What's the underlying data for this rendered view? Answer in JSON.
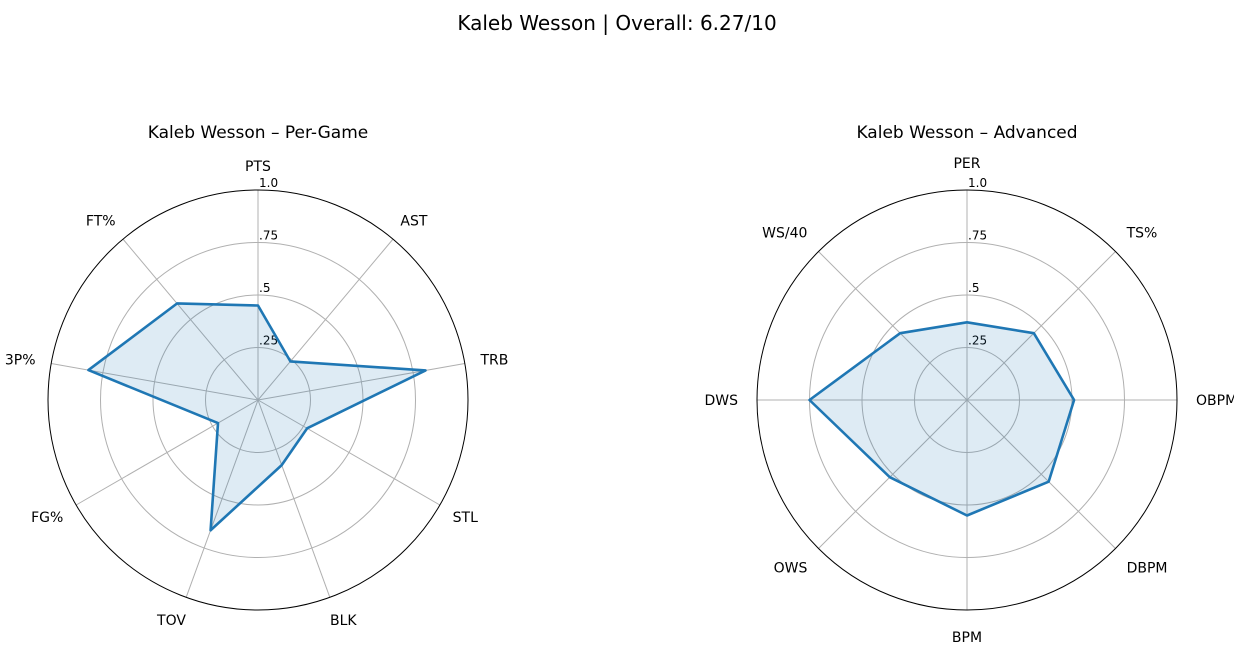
{
  "figure": {
    "suptitle": "Kaleb Wesson | Overall: 6.27/10"
  },
  "chart_data": [
    {
      "type": "radar",
      "title": "Kaleb Wesson – Per-Game",
      "categories": [
        "PTS",
        "AST",
        "TRB",
        "STL",
        "BLK",
        "TOV",
        "FG%",
        "3P%",
        "FT%"
      ],
      "values": [
        0.45,
        0.24,
        0.81,
        0.27,
        0.33,
        0.66,
        0.22,
        0.82,
        0.6
      ],
      "rlim": [
        0,
        1
      ],
      "rticks": [
        0.25,
        0.5,
        0.75,
        1.0
      ],
      "rtick_labels": [
        ".25",
        ".5",
        ".75",
        "1.0"
      ],
      "grid": true,
      "colors": {
        "line": "#1f77b4",
        "fill": "#1f77b4",
        "grid": "#b0b0b0",
        "frame": "#000000"
      }
    },
    {
      "type": "radar",
      "title": "Kaleb Wesson – Advanced",
      "categories": [
        "PER",
        "TS%",
        "OBPM",
        "DBPM",
        "BPM",
        "OWS",
        "DWS",
        "WS/40"
      ],
      "values": [
        0.37,
        0.45,
        0.51,
        0.55,
        0.55,
        0.52,
        0.75,
        0.45
      ],
      "rlim": [
        0,
        1
      ],
      "rticks": [
        0.25,
        0.5,
        0.75,
        1.0
      ],
      "rtick_labels": [
        ".25",
        ".5",
        ".75",
        "1.0"
      ],
      "grid": true,
      "colors": {
        "line": "#1f77b4",
        "fill": "#1f77b4",
        "grid": "#b0b0b0",
        "frame": "#000000"
      }
    }
  ]
}
